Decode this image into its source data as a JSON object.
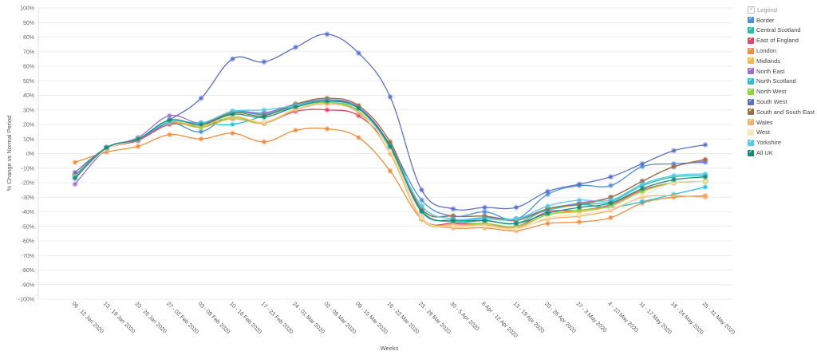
{
  "chart_data": {
    "type": "line",
    "title": "",
    "xlabel": "Weeks",
    "ylabel": "% Change vs Normal Period",
    "ylim": [
      -100,
      100
    ],
    "yticks": [
      "100%",
      "90%",
      "80%",
      "70%",
      "60%",
      "50%",
      "40%",
      "30%",
      "20%",
      "10%",
      "0%",
      "-10%",
      "-20%",
      "-30%",
      "-40%",
      "-50%",
      "-60%",
      "-70%",
      "-80%",
      "-90%",
      "-100%"
    ],
    "categories": [
      "06 - 12 Jan 2020",
      "13 - 19 Jan 2020",
      "20 - 26 Jan 2020",
      "27 - 02 Feb 2020",
      "03 - 09 Feb 2020",
      "10 - 16 Feb 2020",
      "17 - 23 Feb 2020",
      "24 - 01 Mar 2020",
      "02 - 08 Mar 2020",
      "09 - 15 Mar 2020",
      "16 - 22 Mar 2020",
      "23 - 29 Mar 2020",
      "30 - 5 Apr 2020",
      "6 Apr - 12 Apr 2020",
      "13 - 19 Apr 2020",
      "20 - 26 Apr 2020",
      "27 - 3 May 2020",
      "4 - 10 May 2020",
      "11 - 17 May 2020",
      "18 - 24 May 2020",
      "25 - 31 May 2020"
    ],
    "legend_title": "Legend",
    "legend_position": "right",
    "grid": true,
    "series": [
      {
        "name": "Border",
        "color": "#4a90d9",
        "values": [
          -16,
          4,
          9,
          21,
          15,
          28,
          27,
          33,
          37,
          31,
          6,
          -32,
          -43,
          -40,
          -45,
          -28,
          -22,
          -22,
          -9,
          -7,
          -6
        ]
      },
      {
        "name": "Central Scotland",
        "color": "#1fbfa8",
        "values": [
          -15,
          4,
          10,
          22,
          20,
          28,
          28,
          33,
          37,
          31,
          5,
          -39,
          -47,
          -46,
          -48,
          -38,
          -35,
          -33,
          -22,
          -16,
          -15
        ]
      },
      {
        "name": "East of England",
        "color": "#e0446a",
        "values": [
          -15,
          3,
          9,
          20,
          19,
          24,
          21,
          29,
          30,
          26,
          3,
          -44,
          -48,
          -48,
          -50,
          -40,
          -39,
          -35,
          -25,
          -20,
          -19
        ]
      },
      {
        "name": "London",
        "color": "#f08c3c",
        "values": [
          -6,
          1,
          5,
          13,
          10,
          14,
          8,
          16,
          17,
          11,
          -12,
          -45,
          -51,
          -51,
          -53,
          -48,
          -47,
          -44,
          -34,
          -30,
          -29
        ]
      },
      {
        "name": "Midlands",
        "color": "#f5b94a",
        "values": [
          -15,
          3,
          10,
          21,
          18,
          24,
          21,
          31,
          35,
          29,
          3,
          -44,
          -49,
          -49,
          -51,
          -42,
          -40,
          -36,
          -26,
          -20,
          -19
        ]
      },
      {
        "name": "North East",
        "color": "#9b6fd4",
        "values": [
          -21,
          3,
          11,
          26,
          21,
          29,
          28,
          34,
          37,
          32,
          6,
          -38,
          -43,
          -43,
          -45,
          -38,
          -34,
          -30,
          -19,
          -9,
          -5
        ]
      },
      {
        "name": "North Scotland",
        "color": "#20c4d8",
        "values": [
          -16,
          4,
          10,
          21,
          21,
          20,
          26,
          32,
          35,
          30,
          4,
          -36,
          -45,
          -44,
          -45,
          -39,
          -35,
          -37,
          -33,
          -28,
          -23
        ]
      },
      {
        "name": "North West",
        "color": "#8bd43a",
        "values": [
          -16,
          3,
          10,
          22,
          18,
          25,
          21,
          31,
          35,
          29,
          3,
          -45,
          -49,
          -48,
          -50,
          -42,
          -39,
          -36,
          -26,
          -20,
          -19
        ]
      },
      {
        "name": "South West",
        "color": "#5a6fc8",
        "values": [
          -13,
          4,
          10,
          23,
          38,
          65,
          63,
          73,
          82,
          69,
          39,
          -25,
          -38,
          -37,
          -37,
          -26,
          -21,
          -16,
          -7,
          2,
          6
        ]
      },
      {
        "name": "South and South East",
        "color": "#9a7040",
        "values": [
          -15,
          4,
          10,
          22,
          20,
          28,
          26,
          34,
          38,
          33,
          8,
          -38,
          -43,
          -43,
          -46,
          -38,
          -35,
          -30,
          -19,
          -9,
          -4
        ]
      },
      {
        "name": "Wales",
        "color": "#f0b070",
        "values": [
          -16,
          3,
          10,
          22,
          19,
          26,
          21,
          30,
          34,
          28,
          0,
          -45,
          -49,
          -49,
          -51,
          -45,
          -43,
          -39,
          -30,
          -29,
          -30
        ]
      },
      {
        "name": "West",
        "color": "#f5e6b8",
        "values": [
          -16,
          3,
          10,
          22,
          20,
          26,
          22,
          31,
          36,
          30,
          2,
          -44,
          -50,
          -50,
          -52,
          -44,
          -42,
          -38,
          -29,
          -20,
          -19
        ]
      },
      {
        "name": "Yorkshire",
        "color": "#5ac8e8",
        "values": [
          -16,
          4,
          10,
          22,
          21,
          29,
          30,
          33,
          36,
          31,
          5,
          -36,
          -45,
          -45,
          -45,
          -36,
          -32,
          -32,
          -21,
          -15,
          -14
        ]
      },
      {
        "name": "All UK",
        "color": "#168a7a",
        "values": [
          -17,
          4,
          10,
          23,
          20,
          27,
          25,
          32,
          36,
          31,
          5,
          -40,
          -46,
          -46,
          -48,
          -41,
          -37,
          -34,
          -24,
          -18,
          -16
        ]
      }
    ]
  }
}
